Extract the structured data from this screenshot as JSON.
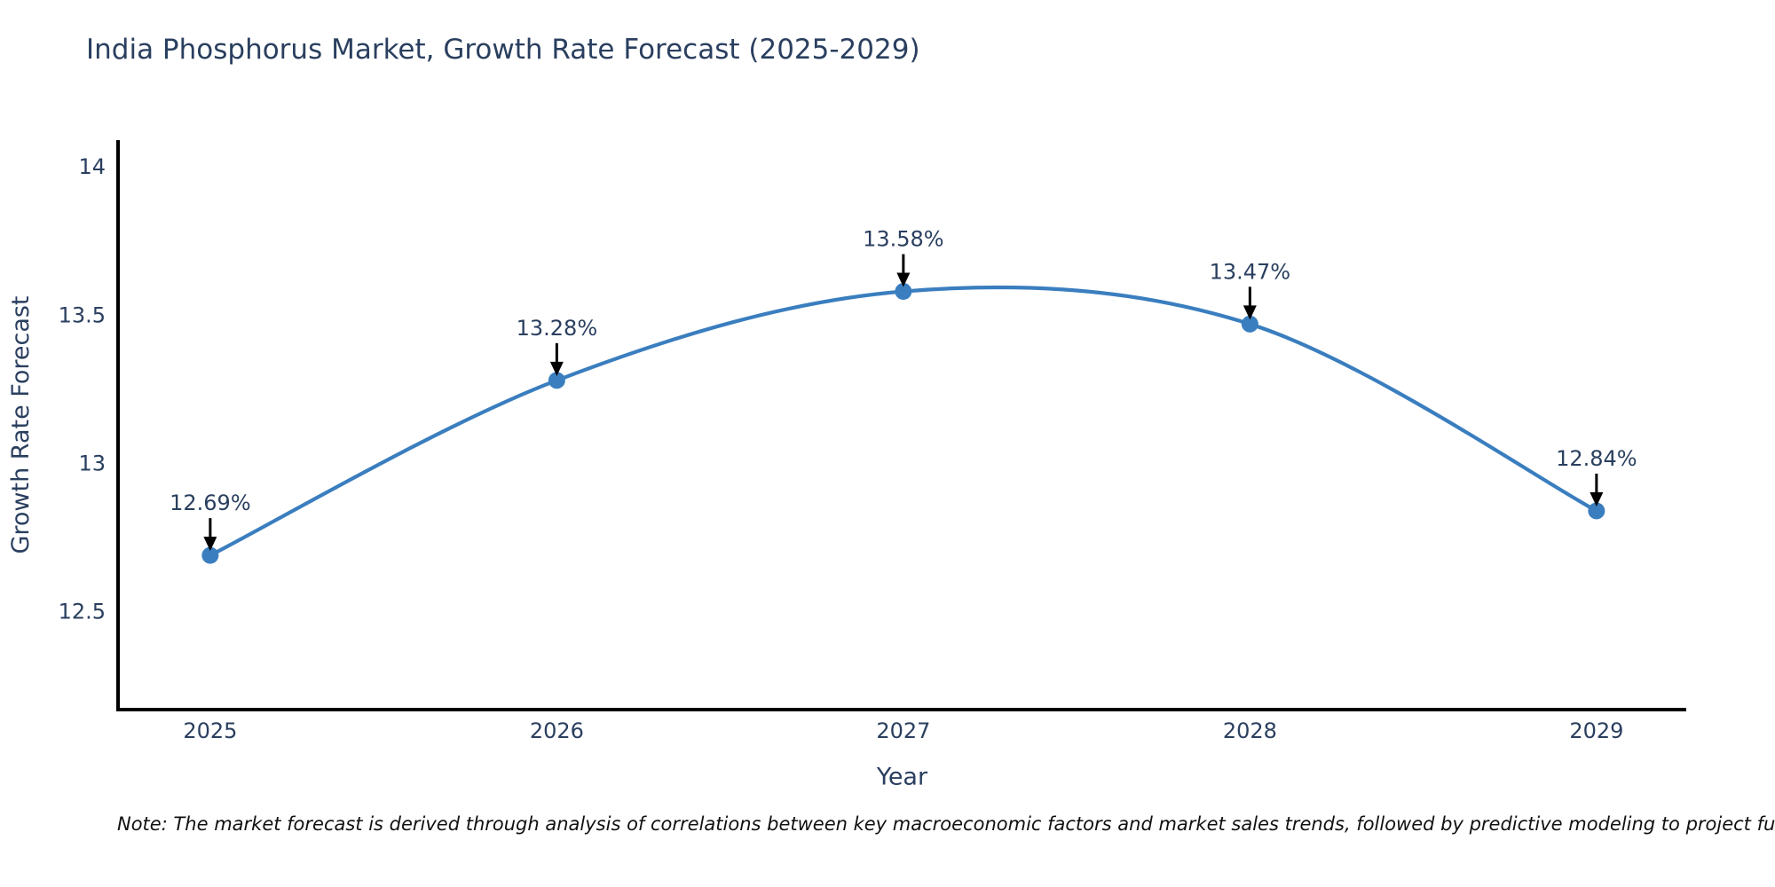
{
  "title": "India Phosphorus Market, Growth Rate Forecast (2025-2029)",
  "note": "Note: The market forecast is derived through analysis of correlations between key macroeconomic factors and market sales trends, followed by predictive modeling to project future sales",
  "chart_data": {
    "type": "line",
    "title": "India Phosphorus Market, Growth Rate Forecast (2025-2029)",
    "x": [
      2025,
      2026,
      2027,
      2028,
      2029
    ],
    "values": [
      12.69,
      13.28,
      13.58,
      13.47,
      12.84
    ],
    "series": [
      {
        "name": "Growth Rate Forecast",
        "values": [
          12.69,
          13.28,
          13.58,
          13.47,
          12.84
        ]
      }
    ],
    "point_labels": [
      "12.69%",
      "13.28%",
      "13.58%",
      "13.47%",
      "12.84%"
    ],
    "x_tick_labels": [
      "2025",
      "2026",
      "2027",
      "2028",
      "2029"
    ],
    "y_ticks": [
      12.5,
      13,
      13.5,
      14
    ],
    "y_tick_labels": [
      "12.5",
      "13",
      "13.5",
      "14"
    ],
    "xlabel": "Year",
    "ylabel": "Growth Rate Forecast",
    "xlim": [
      2024.734,
      2029.259
    ],
    "ylim": [
      12.17,
      14.09
    ],
    "line_shape": "spline",
    "grid": false,
    "legend": "none",
    "colors": {
      "line": "#3a7ebf",
      "marker": "#3a7ebf",
      "arrow": "#000000",
      "text": "#2a3f5f",
      "axis_line": "#000000",
      "background": "#ffffff"
    }
  }
}
